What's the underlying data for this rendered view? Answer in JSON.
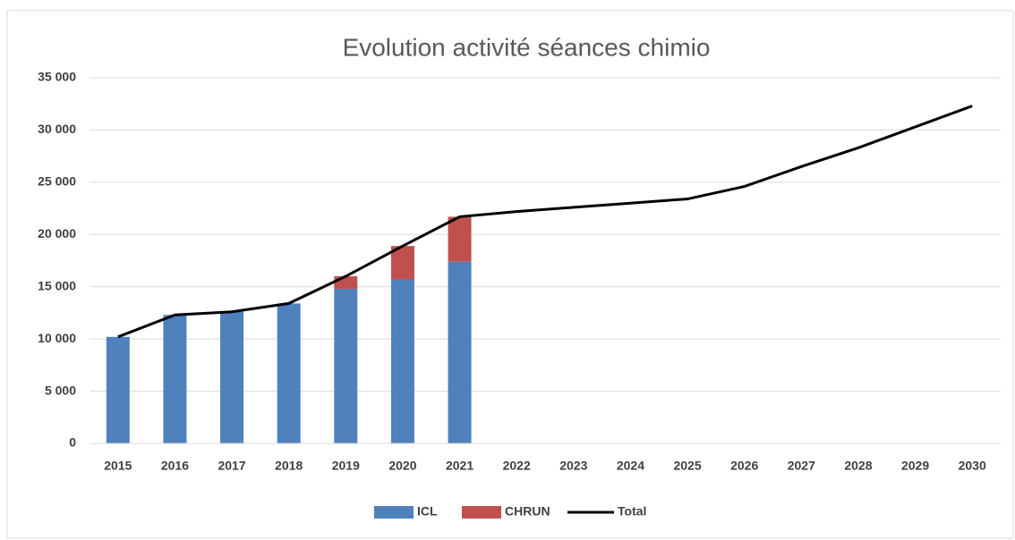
{
  "chart_data": {
    "type": "bar",
    "title": "Evolution activité séances chimio",
    "categories": [
      "2015",
      "2016",
      "2017",
      "2018",
      "2019",
      "2020",
      "2021",
      "2022",
      "2023",
      "2024",
      "2025",
      "2026",
      "2027",
      "2028",
      "2029",
      "2030"
    ],
    "stacked": true,
    "series": [
      {
        "name": "ICL",
        "type": "bar",
        "color": "#4f81bd",
        "values": [
          10200,
          12300,
          12600,
          13400,
          14800,
          15700,
          17400,
          null,
          null,
          null,
          null,
          null,
          null,
          null,
          null,
          null
        ]
      },
      {
        "name": "CHRUN",
        "type": "bar",
        "color": "#c0504d",
        "values": [
          null,
          null,
          null,
          null,
          1200,
          3200,
          4300,
          null,
          null,
          null,
          null,
          null,
          null,
          null,
          null,
          null
        ]
      },
      {
        "name": "Total",
        "type": "line",
        "color": "#000000",
        "values": [
          10200,
          12300,
          12600,
          13400,
          16000,
          18900,
          21700,
          22200,
          22600,
          23000,
          23400,
          24600,
          26500,
          28300,
          30300,
          32300
        ]
      }
    ],
    "ylim": [
      0,
      35000
    ],
    "yticks": [
      0,
      {
        "value": 5000,
        "label": "5 000"
      },
      {
        "value": 10000,
        "label": "10 000"
      },
      {
        "value": 15000,
        "label": "15 000"
      },
      {
        "value": 20000,
        "label": "20 000"
      },
      {
        "value": 25000,
        "label": "25 000"
      },
      {
        "value": 30000,
        "label": "30 000"
      },
      {
        "value": 35000,
        "label": "35 000"
      }
    ],
    "grid": true,
    "legend": "bottom"
  }
}
